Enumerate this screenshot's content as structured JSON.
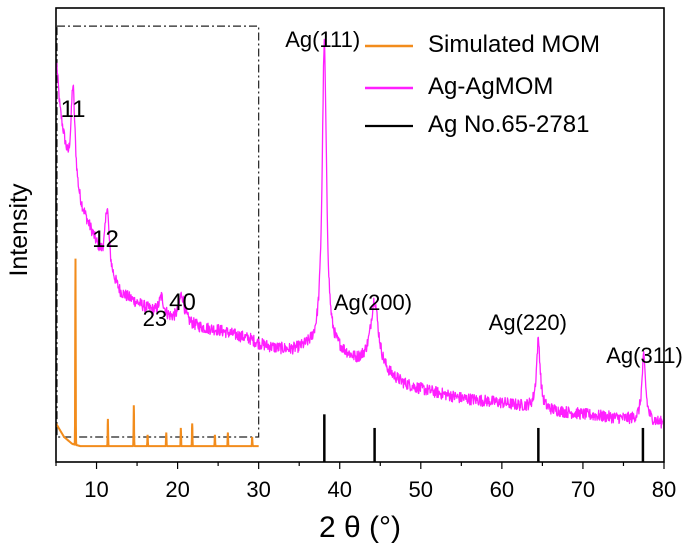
{
  "chart_data": {
    "type": "line",
    "title": "",
    "xlabel": "2 θ (°)",
    "ylabel": "Intensity",
    "xlim": [
      5,
      80
    ],
    "xticks": [
      10,
      20,
      30,
      40,
      50,
      60,
      70,
      80
    ],
    "ylim": [
      0,
      100
    ],
    "yticks_shown": false,
    "grid": false,
    "legend_position": "top-right",
    "legend": [
      {
        "label": "Simulated MOM",
        "color": "#f28c1c",
        "style": "line"
      },
      {
        "label": "Ag-AgMOM",
        "color": "#ff1fff",
        "style": "line"
      },
      {
        "label": "Ag No.65-2781",
        "color": "#000000",
        "style": "stick"
      }
    ],
    "series": [
      {
        "name": "Ag-AgMOM",
        "color": "#ff1fff",
        "baseline": [
          [
            5.1,
            87
          ],
          [
            5.5,
            77
          ],
          [
            6.5,
            64
          ],
          [
            8,
            56
          ],
          [
            9.5,
            50
          ],
          [
            11,
            43
          ],
          [
            13,
            37
          ],
          [
            15,
            35
          ],
          [
            17,
            33
          ],
          [
            19,
            31.5
          ],
          [
            21,
            30.5
          ],
          [
            23,
            29.5
          ],
          [
            25,
            29
          ],
          [
            27,
            28
          ],
          [
            29,
            27
          ],
          [
            30,
            26
          ],
          [
            32,
            25
          ],
          [
            34,
            24.5
          ],
          [
            36,
            25
          ],
          [
            38,
            25
          ],
          [
            40,
            24
          ],
          [
            42,
            22
          ],
          [
            44,
            22
          ],
          [
            46,
            19
          ],
          [
            48,
            17
          ],
          [
            50,
            16
          ],
          [
            55,
            14
          ],
          [
            60,
            13
          ],
          [
            65,
            11.5
          ],
          [
            70,
            10.5
          ],
          [
            75,
            9.5
          ],
          [
            79.8,
            8.5
          ]
        ],
        "peaks": [
          {
            "x": 7.1,
            "h": 22,
            "w": 0.3
          },
          {
            "x": 11.3,
            "h": 14,
            "w": 0.3
          },
          {
            "x": 18,
            "h": 4,
            "w": 0.35
          },
          {
            "x": 20.5,
            "h": 6,
            "w": 0.4
          },
          {
            "x": 38.1,
            "h": 67,
            "w": 0.32
          },
          {
            "x": 44.3,
            "h": 14,
            "w": 0.55
          },
          {
            "x": 64.5,
            "h": 15,
            "w": 0.28
          },
          {
            "x": 77.5,
            "h": 14,
            "w": 0.28
          }
        ]
      },
      {
        "name": "Simulated MOM",
        "color": "#f28c1c",
        "x_range": [
          5,
          30
        ],
        "baseline": [
          [
            5,
            8.5
          ],
          [
            6,
            5.5
          ],
          [
            7,
            4
          ],
          [
            8,
            3.5
          ],
          [
            30,
            3.5
          ]
        ],
        "peaks": [
          {
            "x": 7.4,
            "h": 41
          },
          {
            "x": 11.4,
            "h": 6
          },
          {
            "x": 14.6,
            "h": 9
          },
          {
            "x": 16.3,
            "h": 2.5
          },
          {
            "x": 18.6,
            "h": 3
          },
          {
            "x": 20.4,
            "h": 4
          },
          {
            "x": 21.8,
            "h": 5
          },
          {
            "x": 24.6,
            "h": 2.5
          },
          {
            "x": 26.2,
            "h": 3
          },
          {
            "x": 29.2,
            "h": 2
          }
        ]
      }
    ],
    "reference_sticks": {
      "name": "Ag No.65-2781",
      "color": "#000000",
      "peaks": [
        {
          "x": 38.1,
          "h": 10.5
        },
        {
          "x": 44.3,
          "h": 7.5
        },
        {
          "x": 64.5,
          "h": 7.5
        },
        {
          "x": 77.4,
          "h": 7.5
        }
      ]
    },
    "annotations": [
      {
        "text": "11",
        "x": 7.1
      },
      {
        "text": "12",
        "x": 11.1
      },
      {
        "text": "23",
        "x": 17.2
      },
      {
        "text": "40",
        "x": 20.6
      },
      {
        "text": "Ag(111)",
        "x": 37.9
      },
      {
        "text": "Ag(200)",
        "x": 44.1
      },
      {
        "text": "Ag(220)",
        "x": 63.2
      },
      {
        "text": "Ag(311)",
        "x": 77.6
      }
    ],
    "inset_region": {
      "x_range": [
        5,
        30
      ],
      "y_range": [
        0,
        96
      ],
      "style": "dash-dot box"
    }
  }
}
